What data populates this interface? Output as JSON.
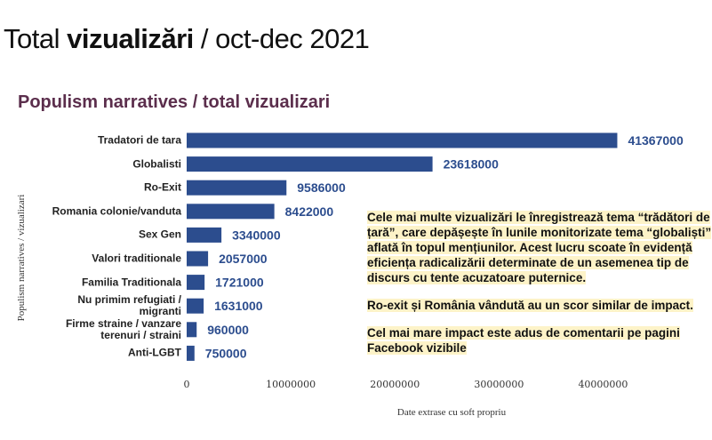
{
  "header": {
    "title_start": "Total",
    "title_bold": "vizualizări",
    "title_end": "/ oct-dec 2021"
  },
  "chart_data": {
    "type": "barh",
    "title": "Populism narratives / total vizualizari",
    "ylabel": "Populism narratives / vizualizari",
    "xlabel": "Date extrase cu soft propriu",
    "categories": [
      "Tradatori de tara",
      "Globalisti",
      "Ro-Exit",
      "Romania colonie/vanduta",
      "Sex Gen",
      "Valori traditionale",
      "Familia Traditionala",
      "Nu primim refugiati / migranti",
      "Firme straine / vanzare terenuri / straini",
      "Anti-LGBT"
    ],
    "values": [
      41367000,
      23618000,
      9586000,
      8422000,
      3340000,
      2057000,
      1721000,
      1631000,
      960000,
      750000
    ],
    "color": "#2c4d8e",
    "xlim": [
      0,
      45000000
    ],
    "xticks": [
      0,
      10000000,
      20000000,
      30000000,
      40000000
    ],
    "annotations": [
      "Cele mai multe vizualizări le înregistrează tema “trădători de țară”, care depășește în lunile monitorizate tema “globaliști” aflată în topul mențiunilor. Acest lucru scoate în evidență eficiența radicalizării determinate de un asemenea tip de discurs cu tente acuzatoare puternice.",
      "Ro-exit și România vândută au un scor similar de impact.",
      "Cel mai mare impact este adus de comentarii pe pagini Facebook vizibile"
    ]
  }
}
